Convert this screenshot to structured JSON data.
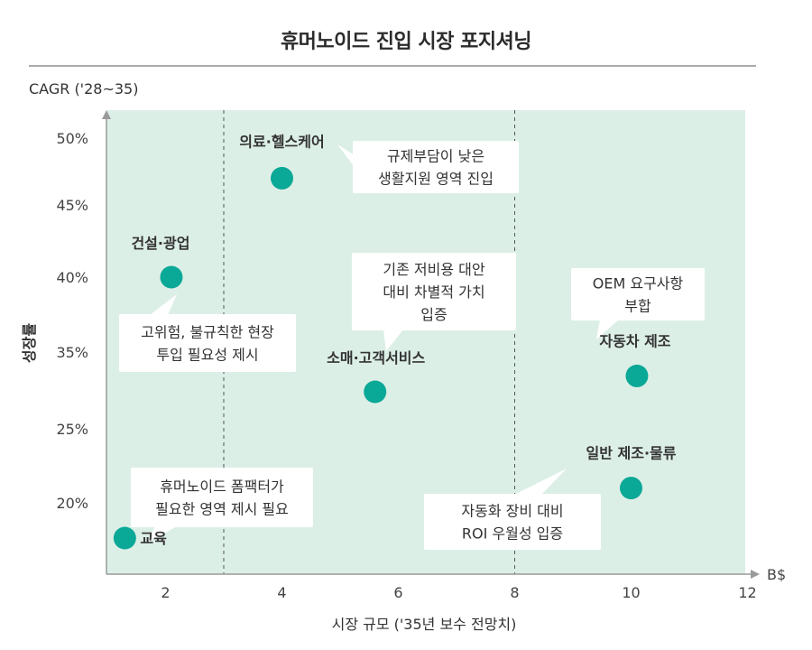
{
  "chart_data": {
    "type": "scatter",
    "title": "휴머노이드 진입 시장 포지셔닝",
    "xlabel": "시장 규모 ('35년 보수 전망치)",
    "x_unit": "B$",
    "ylabel": "성장률",
    "y_axis_caption": "CAGR ('28~35)",
    "xlim": [
      1,
      12.5
    ],
    "x_ticks": [
      2,
      4,
      6,
      8,
      10,
      12
    ],
    "y_ticks": [
      "20%",
      "25%",
      "35%",
      "40%",
      "45%",
      "50%"
    ],
    "y_ticks_note": "non-uniform axis, printed tick labels only",
    "vertical_dividers": [
      3,
      8
    ],
    "colors": {
      "background": "#dcefe7",
      "point": "#0aa896",
      "axis": "#9a9a9a"
    },
    "points": [
      {
        "label": "의료·헬스케어",
        "x": 4.0,
        "y": 47
      },
      {
        "label": "건설·광업",
        "x": 2.1,
        "y": 40
      },
      {
        "label": "소매·고객서비스",
        "x": 5.6,
        "y": 30
      },
      {
        "label": "자동차 제조",
        "x": 10.1,
        "y": 32
      },
      {
        "label": "일반 제조·물류",
        "x": 10.0,
        "y": 21
      },
      {
        "label": "교육",
        "x": 1.3,
        "y": 17
      }
    ],
    "callouts": [
      {
        "lines": [
          "규제부담이 낮은",
          "생활지원 영역 진입"
        ]
      },
      {
        "lines": [
          "고위험, 불규칙한 현장",
          "투입 필요성 제시"
        ]
      },
      {
        "lines": [
          "기존 저비용 대안",
          "대비 차별적 가치",
          "입증"
        ]
      },
      {
        "lines": [
          "OEM 요구사항",
          "부합"
        ]
      },
      {
        "lines": [
          "자동화 장비 대비",
          "ROI 우월성 입증"
        ]
      },
      {
        "lines": [
          "휴머노이드 폼팩터가",
          "필요한 영역 제시 필요"
        ]
      }
    ]
  }
}
